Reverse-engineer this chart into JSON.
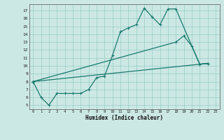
{
  "xlabel": "Humidex (Indice chaleur)",
  "background_color": "#cce8e4",
  "grid_color": "#99ccc6",
  "line_color": "#1a7a6e",
  "xlim": [
    -0.5,
    23.5
  ],
  "ylim": [
    4.5,
    17.8
  ],
  "xticks": [
    0,
    1,
    2,
    3,
    4,
    5,
    6,
    7,
    8,
    9,
    10,
    11,
    12,
    13,
    14,
    15,
    16,
    17,
    18,
    19,
    20,
    21,
    22,
    23
  ],
  "yticks": [
    5,
    6,
    7,
    8,
    9,
    10,
    11,
    12,
    13,
    14,
    15,
    16,
    17
  ],
  "line1_x": [
    0,
    1,
    2,
    3,
    4,
    5,
    6,
    7,
    8,
    9,
    10,
    11,
    12,
    13,
    14,
    15,
    16,
    17,
    18,
    21,
    22
  ],
  "line1_y": [
    8.0,
    6.0,
    5.0,
    6.5,
    6.5,
    6.5,
    6.5,
    7.0,
    8.5,
    8.7,
    11.3,
    14.3,
    14.8,
    15.2,
    17.3,
    16.2,
    15.2,
    17.2,
    17.2,
    10.2,
    10.3
  ],
  "line2_x": [
    0,
    18,
    19,
    20,
    21,
    22
  ],
  "line2_y": [
    8.0,
    13.0,
    13.8,
    12.5,
    10.2,
    10.3
  ],
  "line3_x": [
    0,
    22
  ],
  "line3_y": [
    8.0,
    10.3
  ]
}
